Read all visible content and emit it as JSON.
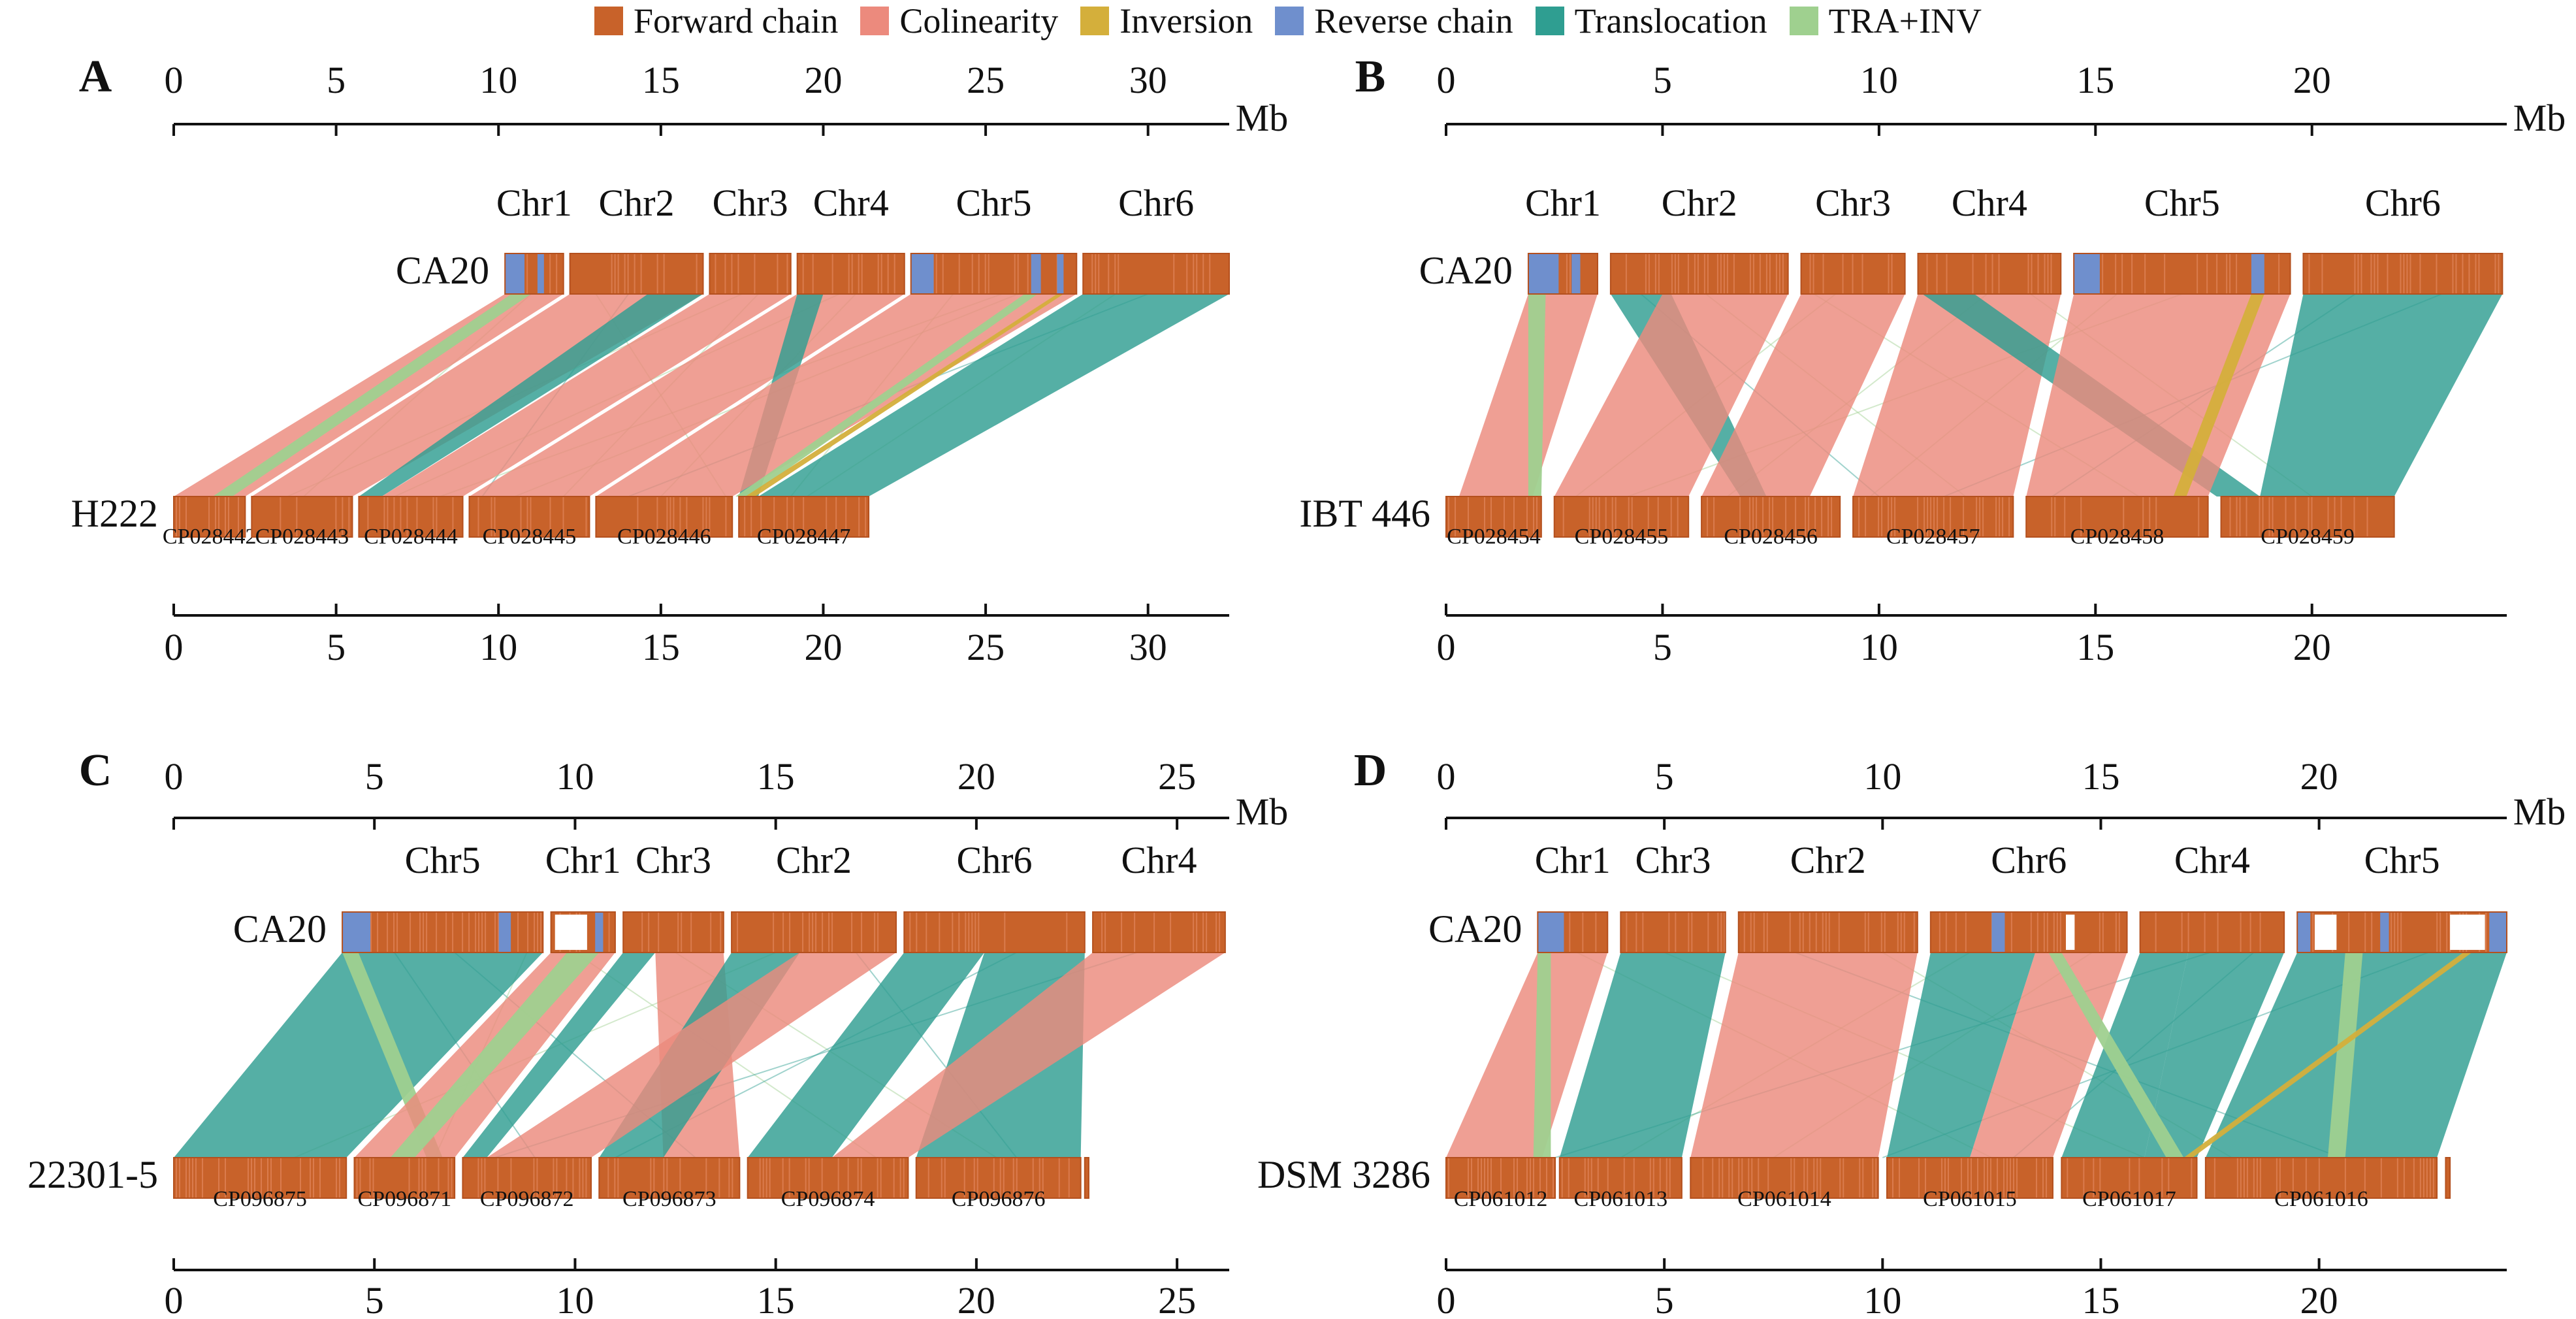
{
  "legend": [
    {
      "label": "Forward chain",
      "color": "#c8622a"
    },
    {
      "label": "Colinearity",
      "color": "#ec8a7d"
    },
    {
      "label": "Inversion",
      "color": "#d4af3b"
    },
    {
      "label": "Reverse chain",
      "color": "#6f8fcd"
    },
    {
      "label": "Translocation",
      "color": "#2f9e91"
    },
    {
      "label": "TRA+INV",
      "color": "#9fd08f"
    }
  ],
  "colors": {
    "forward": "#c8622a",
    "colinearity": "#ec8a7d",
    "inversion": "#d4af3b",
    "reverse": "#6f8fcd",
    "translocation": "#2f9e91",
    "trainv": "#9fd08f",
    "axis": "#111111"
  },
  "panels": [
    {
      "letter": "A",
      "unit": "Mb",
      "top_ticks": [
        "0",
        "5",
        "10",
        "15",
        "20",
        "25",
        "30"
      ],
      "bottom_ticks": [
        "0",
        "5",
        "10",
        "15",
        "20",
        "25",
        "30"
      ],
      "top_max": 32.5,
      "bottom_max": 32.5,
      "reference": "CA20",
      "query": "H222",
      "top_segments": [
        {
          "label": "Chr1",
          "start": 10.2,
          "end": 12.0,
          "reverse": [
            [
              10.2,
              10.8
            ],
            [
              11.2,
              11.4
            ]
          ]
        },
        {
          "label": "Chr2",
          "start": 12.2,
          "end": 16.3,
          "reverse": []
        },
        {
          "label": "Chr3",
          "start": 16.5,
          "end": 19.0,
          "reverse": []
        },
        {
          "label": "Chr4",
          "start": 19.2,
          "end": 22.5,
          "reverse": []
        },
        {
          "label": "Chr5",
          "start": 22.7,
          "end": 27.8,
          "reverse": [
            [
              22.7,
              23.4
            ],
            [
              26.4,
              26.7
            ],
            [
              27.2,
              27.4
            ]
          ]
        },
        {
          "label": "Chr6",
          "start": 28.0,
          "end": 32.5,
          "reverse": []
        }
      ],
      "bottom_segments": [
        {
          "label": "CP028442",
          "start": 0.0,
          "end": 2.2
        },
        {
          "label": "CP028443",
          "start": 2.4,
          "end": 5.5
        },
        {
          "label": "CP028444",
          "start": 5.7,
          "end": 8.9
        },
        {
          "label": "CP028445",
          "start": 9.1,
          "end": 12.8
        },
        {
          "label": "CP028446",
          "start": 13.0,
          "end": 17.2
        },
        {
          "label": "CP028447",
          "start": 17.4,
          "end": 21.4
        }
      ],
      "links": [
        {
          "type": "colinearity",
          "top": [
            10.2,
            12.0
          ],
          "bottom": [
            0.0,
            2.2
          ]
        },
        {
          "type": "colinearity",
          "top": [
            12.2,
            16.3
          ],
          "bottom": [
            2.4,
            5.5
          ]
        },
        {
          "type": "translocation",
          "top": [
            14.6,
            16.3
          ],
          "bottom": [
            5.7,
            6.4
          ]
        },
        {
          "type": "colinearity",
          "top": [
            16.5,
            19.0
          ],
          "bottom": [
            6.4,
            8.9
          ]
        },
        {
          "type": "colinearity",
          "top": [
            19.2,
            22.5
          ],
          "bottom": [
            9.1,
            12.8
          ]
        },
        {
          "type": "translocation",
          "top": [
            19.2,
            20.0
          ],
          "bottom": [
            17.4,
            18.0
          ]
        },
        {
          "type": "colinearity",
          "top": [
            22.7,
            27.8
          ],
          "bottom": [
            13.0,
            17.2
          ]
        },
        {
          "type": "translocation",
          "top": [
            28.0,
            32.5
          ],
          "bottom": [
            18.0,
            21.4
          ]
        },
        {
          "type": "trainv",
          "top": [
            10.4,
            11.0
          ],
          "bottom": [
            1.2,
            1.8
          ]
        },
        {
          "type": "trainv",
          "top": [
            26.2,
            26.6
          ],
          "bottom": [
            17.3,
            17.7
          ]
        },
        {
          "type": "inversion",
          "top": [
            27.2,
            27.4
          ],
          "bottom": [
            17.6,
            17.9
          ]
        }
      ],
      "thin": [
        [
          11.0,
          4.0
        ],
        [
          14.0,
          9.5
        ],
        [
          18.0,
          12.0
        ],
        [
          21.0,
          15.0
        ],
        [
          24.0,
          19.0
        ],
        [
          26.0,
          10.5
        ],
        [
          30.0,
          14.0
        ],
        [
          13.0,
          17.0
        ],
        [
          17.5,
          3.5
        ],
        [
          20.5,
          6.8
        ],
        [
          25.5,
          8.2
        ],
        [
          29.0,
          19.5
        ]
      ]
    },
    {
      "letter": "B",
      "unit": "Mb",
      "top_ticks": [
        "0",
        "5",
        "10",
        "15",
        "20"
      ],
      "bottom_ticks": [
        "0",
        "5",
        "10",
        "15",
        "20"
      ],
      "top_max": 24.5,
      "bottom_max": 24.5,
      "reference": "CA20",
      "query": "IBT 446",
      "top_segments": [
        {
          "label": "Chr1",
          "start": 1.9,
          "end": 3.5,
          "reverse": [
            [
              1.9,
              2.6
            ],
            [
              2.9,
              3.1
            ]
          ]
        },
        {
          "label": "Chr2",
          "start": 3.8,
          "end": 7.9,
          "reverse": []
        },
        {
          "label": "Chr3",
          "start": 8.2,
          "end": 10.6,
          "reverse": []
        },
        {
          "label": "Chr4",
          "start": 10.9,
          "end": 14.2,
          "reverse": []
        },
        {
          "label": "Chr5",
          "start": 14.5,
          "end": 19.5,
          "reverse": [
            [
              14.5,
              15.1
            ],
            [
              18.6,
              18.9
            ]
          ]
        },
        {
          "label": "Chr6",
          "start": 19.8,
          "end": 24.4,
          "reverse": []
        }
      ],
      "bottom_segments": [
        {
          "label": "CP028454",
          "start": 0.0,
          "end": 2.2
        },
        {
          "label": "CP028455",
          "start": 2.5,
          "end": 5.6
        },
        {
          "label": "CP028456",
          "start": 5.9,
          "end": 9.1
        },
        {
          "label": "CP028457",
          "start": 9.4,
          "end": 13.1
        },
        {
          "label": "CP028458",
          "start": 13.4,
          "end": 17.6
        },
        {
          "label": "CP028459",
          "start": 17.9,
          "end": 21.9
        }
      ],
      "links": [
        {
          "type": "colinearity",
          "top": [
            1.9,
            3.5
          ],
          "bottom": [
            0.3,
            2.0
          ]
        },
        {
          "type": "trainv",
          "top": [
            1.9,
            2.3
          ],
          "bottom": [
            1.9,
            2.2
          ]
        },
        {
          "type": "translocation",
          "top": [
            3.8,
            5.2
          ],
          "bottom": [
            6.8,
            7.4
          ]
        },
        {
          "type": "colinearity",
          "top": [
            5.0,
            7.9
          ],
          "bottom": [
            2.5,
            5.6
          ]
        },
        {
          "type": "colinearity",
          "top": [
            8.2,
            10.6
          ],
          "bottom": [
            5.9,
            8.4
          ]
        },
        {
          "type": "colinearity",
          "top": [
            10.9,
            14.2
          ],
          "bottom": [
            9.4,
            13.1
          ]
        },
        {
          "type": "translocation",
          "top": [
            11.0,
            12.2
          ],
          "bottom": [
            17.8,
            18.8
          ]
        },
        {
          "type": "colinearity",
          "top": [
            14.5,
            19.5
          ],
          "bottom": [
            13.4,
            17.6
          ]
        },
        {
          "type": "inversion",
          "top": [
            18.6,
            18.9
          ],
          "bottom": [
            16.8,
            17.1
          ]
        },
        {
          "type": "translocation",
          "top": [
            19.8,
            24.4
          ],
          "bottom": [
            18.8,
            21.9
          ]
        }
      ],
      "thin": [
        [
          4.5,
          10.0
        ],
        [
          6.0,
          12.0
        ],
        [
          9.0,
          3.0
        ],
        [
          12.5,
          6.5
        ],
        [
          15.5,
          9.8
        ],
        [
          17.0,
          4.2
        ],
        [
          21.0,
          14.0
        ],
        [
          23.0,
          11.5
        ],
        [
          8.5,
          16.0
        ],
        [
          13.5,
          20.0
        ]
      ]
    },
    {
      "letter": "C",
      "unit": "Mb",
      "top_ticks": [
        "0",
        "5",
        "10",
        "15",
        "20",
        "25"
      ],
      "bottom_ticks": [
        "0",
        "5",
        "10",
        "15",
        "20",
        "25"
      ],
      "top_max": 26.3,
      "bottom_max": 26.3,
      "reference": "CA20",
      "query": "22301-5",
      "top_segments": [
        {
          "label": "Chr5",
          "start": 4.2,
          "end": 9.2,
          "reverse": [
            [
              4.2,
              4.9
            ],
            [
              8.1,
              8.4
            ]
          ]
        },
        {
          "label": "Chr1",
          "start": 9.4,
          "end": 11.0,
          "reverse": [
            [
              10.5,
              10.7
            ]
          ],
          "blank": [
            [
              9.5,
              10.3
            ]
          ]
        },
        {
          "label": "Chr3",
          "start": 11.2,
          "end": 13.7,
          "reverse": []
        },
        {
          "label": "Chr2",
          "start": 13.9,
          "end": 18.0,
          "reverse": []
        },
        {
          "label": "Chr6",
          "start": 18.2,
          "end": 22.7,
          "reverse": []
        },
        {
          "label": "Chr4",
          "start": 22.9,
          "end": 26.2,
          "reverse": []
        }
      ],
      "bottom_segments": [
        {
          "label": "CP096875",
          "start": 0.0,
          "end": 4.3
        },
        {
          "label": "CP096871",
          "start": 4.5,
          "end": 7.0
        },
        {
          "label": "CP096872",
          "start": 7.2,
          "end": 10.4
        },
        {
          "label": "CP096873",
          "start": 10.6,
          "end": 14.1
        },
        {
          "label": "CP096874",
          "start": 14.3,
          "end": 18.3
        },
        {
          "label": "CP096876",
          "start": 18.5,
          "end": 22.6
        },
        {
          "label": "",
          "start": 22.7,
          "end": 22.8
        }
      ],
      "links": [
        {
          "type": "translocation",
          "top": [
            4.2,
            9.2
          ],
          "bottom": [
            0.0,
            4.3
          ]
        },
        {
          "type": "trainv",
          "top": [
            4.2,
            4.6
          ],
          "bottom": [
            6.3,
            6.7
          ]
        },
        {
          "type": "colinearity",
          "top": [
            9.4,
            11.0
          ],
          "bottom": [
            4.5,
            7.0
          ]
        },
        {
          "type": "trainv",
          "top": [
            9.8,
            10.6
          ],
          "bottom": [
            5.4,
            6.0
          ]
        },
        {
          "type": "translocation",
          "top": [
            11.2,
            12.0
          ],
          "bottom": [
            7.2,
            7.8
          ]
        },
        {
          "type": "colinearity",
          "top": [
            12.0,
            13.7
          ],
          "bottom": [
            12.2,
            14.1
          ]
        },
        {
          "type": "translocation",
          "top": [
            13.9,
            15.6
          ],
          "bottom": [
            10.6,
            12.2
          ]
        },
        {
          "type": "colinearity",
          "top": [
            15.6,
            18.0
          ],
          "bottom": [
            7.8,
            10.4
          ]
        },
        {
          "type": "translocation",
          "top": [
            18.2,
            20.2
          ],
          "bottom": [
            14.3,
            16.4
          ]
        },
        {
          "type": "translocation",
          "top": [
            20.2,
            22.7
          ],
          "bottom": [
            18.5,
            22.6
          ]
        },
        {
          "type": "colinearity",
          "top": [
            22.9,
            26.2
          ],
          "bottom": [
            16.4,
            18.3
          ]
        }
      ],
      "thin": [
        [
          5.5,
          9.0
        ],
        [
          7.0,
          13.0
        ],
        [
          10.0,
          17.5
        ],
        [
          12.5,
          20.5
        ],
        [
          15.0,
          3.0
        ],
        [
          17.0,
          21.0
        ],
        [
          21.0,
          11.0
        ],
        [
          24.0,
          8.0
        ],
        [
          8.8,
          6.5
        ]
      ]
    },
    {
      "letter": "D",
      "unit": "Mb",
      "top_ticks": [
        "0",
        "5",
        "10",
        "15",
        "20"
      ],
      "bottom_ticks": [
        "0",
        "5",
        "10",
        "15",
        "20"
      ],
      "top_max": 24.3,
      "bottom_max": 24.3,
      "reference": "CA20",
      "query": "DSM 3286",
      "top_segments": [
        {
          "label": "Chr1",
          "start": 2.1,
          "end": 3.7,
          "reverse": [
            [
              2.1,
              2.7
            ]
          ]
        },
        {
          "label": "Chr3",
          "start": 4.0,
          "end": 6.4,
          "reverse": []
        },
        {
          "label": "Chr2",
          "start": 6.7,
          "end": 10.8,
          "reverse": []
        },
        {
          "label": "Chr6",
          "start": 11.1,
          "end": 15.6,
          "reverse": [
            [
              12.5,
              12.8
            ]
          ],
          "blank": [
            [
              14.2,
              14.4
            ]
          ]
        },
        {
          "label": "Chr4",
          "start": 15.9,
          "end": 19.2,
          "reverse": []
        },
        {
          "label": "Chr5",
          "start": 19.5,
          "end": 24.3,
          "reverse": [
            [
              19.5,
              19.8
            ],
            [
              21.4,
              21.6
            ],
            [
              23.9,
              24.3
            ]
          ],
          "blank": [
            [
              19.9,
              20.4
            ],
            [
              23.0,
              23.8
            ]
          ]
        }
      ],
      "bottom_segments": [
        {
          "label": "CP061012",
          "start": 0.0,
          "end": 2.5
        },
        {
          "label": "CP061013",
          "start": 2.6,
          "end": 5.4
        },
        {
          "label": "CP061014",
          "start": 5.6,
          "end": 9.9
        },
        {
          "label": "CP061015",
          "start": 10.1,
          "end": 13.9
        },
        {
          "label": "CP061017",
          "start": 14.1,
          "end": 17.2
        },
        {
          "label": "CP061016",
          "start": 17.4,
          "end": 22.7
        },
        {
          "label": "",
          "start": 22.9,
          "end": 23.0
        }
      ],
      "links": [
        {
          "type": "colinearity",
          "top": [
            2.1,
            3.7
          ],
          "bottom": [
            0.0,
            2.2
          ]
        },
        {
          "type": "trainv",
          "top": [
            2.1,
            2.4
          ],
          "bottom": [
            2.0,
            2.4
          ]
        },
        {
          "type": "translocation",
          "top": [
            4.0,
            6.4
          ],
          "bottom": [
            2.6,
            5.4
          ]
        },
        {
          "type": "colinearity",
          "top": [
            6.7,
            10.8
          ],
          "bottom": [
            5.6,
            9.9
          ]
        },
        {
          "type": "translocation",
          "top": [
            11.1,
            13.5
          ],
          "bottom": [
            10.1,
            12.0
          ]
        },
        {
          "type": "colinearity",
          "top": [
            13.5,
            15.6
          ],
          "bottom": [
            12.0,
            13.9
          ]
        },
        {
          "type": "translocation",
          "top": [
            15.9,
            17.0
          ],
          "bottom": [
            14.1,
            16.0
          ]
        },
        {
          "type": "translocation",
          "top": [
            17.0,
            19.2
          ],
          "bottom": [
            16.0,
            17.2
          ]
        },
        {
          "type": "translocation",
          "top": [
            19.5,
            24.3
          ],
          "bottom": [
            17.4,
            22.7
          ]
        },
        {
          "type": "trainv",
          "top": [
            20.6,
            21.0
          ],
          "bottom": [
            20.2,
            20.6
          ]
        },
        {
          "type": "trainv",
          "top": [
            13.8,
            14.1
          ],
          "bottom": [
            16.5,
            16.9
          ]
        },
        {
          "type": "inversion",
          "top": [
            23.3,
            23.5
          ],
          "bottom": [
            16.9,
            17.1
          ]
        }
      ],
      "thin": [
        [
          3.0,
          12.5
        ],
        [
          5.0,
          16.0
        ],
        [
          8.0,
          20.5
        ],
        [
          12.0,
          4.0
        ],
        [
          14.8,
          7.5
        ],
        [
          17.5,
          2.5
        ],
        [
          22.5,
          10.0
        ],
        [
          18.5,
          13.0
        ],
        [
          10.0,
          18.0
        ]
      ]
    }
  ]
}
